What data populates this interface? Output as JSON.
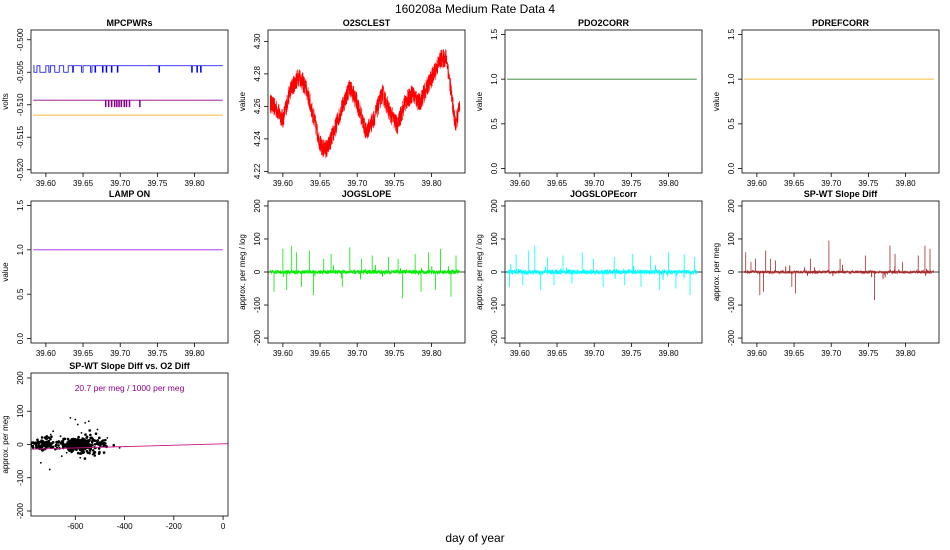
{
  "page": {
    "title": "160208a   Medium Rate Data 4",
    "xlabel": "day of year"
  },
  "chart_data": [
    {
      "id": "mpcpwrs",
      "type": "line",
      "title": "MPCPWRs",
      "ylabel": "volts",
      "xlabel": "",
      "xlim": [
        39.58,
        39.845
      ],
      "ylim": [
        -0.5205,
        -0.4985
      ],
      "xticks": [
        39.6,
        39.65,
        39.7,
        39.75,
        39.8
      ],
      "yticks": [
        -0.52,
        -0.515,
        -0.51,
        -0.505,
        -0.5
      ],
      "series": [
        {
          "color": "#0000ff",
          "kind": "step",
          "base": -0.504,
          "alt": -0.505,
          "dips": [
            [
              39.584,
              39.588
            ],
            [
              39.592,
              39.6
            ],
            [
              39.604,
              39.606
            ],
            [
              39.612,
              39.618
            ],
            [
              39.624,
              39.63
            ],
            [
              39.636,
              39.637
            ],
            [
              39.648,
              39.65
            ],
            [
              39.66,
              39.662
            ],
            [
              39.666,
              39.667
            ],
            [
              39.676,
              39.677
            ],
            [
              39.681,
              39.682
            ],
            [
              39.688,
              39.689
            ],
            [
              39.696,
              39.697
            ],
            [
              39.752,
              39.753
            ],
            [
              39.796,
              39.797
            ],
            [
              39.803,
              39.804
            ],
            [
              39.808,
              39.809
            ]
          ]
        },
        {
          "color": "#8b008b",
          "kind": "step",
          "base": -0.5093,
          "alt": -0.5103,
          "dips": [
            [
              39.68,
              39.681
            ],
            [
              39.684,
              39.685
            ],
            [
              39.688,
              39.689
            ],
            [
              39.692,
              39.693
            ],
            [
              39.695,
              39.696
            ],
            [
              39.698,
              39.699
            ],
            [
              39.701,
              39.702
            ],
            [
              39.705,
              39.706
            ],
            [
              39.708,
              39.709
            ],
            [
              39.712,
              39.713
            ],
            [
              39.726,
              39.727
            ]
          ]
        },
        {
          "color": "#ffa500",
          "kind": "flat",
          "value": -0.5116
        }
      ]
    },
    {
      "id": "o2sclest",
      "type": "line",
      "title": "O2SCLEST",
      "ylabel": "value",
      "xlabel": "",
      "xlim": [
        39.58,
        39.845
      ],
      "ylim": [
        4.219,
        4.307
      ],
      "xticks": [
        39.6,
        39.65,
        39.7,
        39.75,
        39.8
      ],
      "yticks": [
        4.22,
        4.24,
        4.26,
        4.28,
        4.3
      ],
      "series": [
        {
          "color": "#ff0000",
          "kind": "noisy",
          "noise": 0.012,
          "trend": [
            [
              39.583,
              4.262
            ],
            [
              39.592,
              4.258
            ],
            [
              39.6,
              4.252
            ],
            [
              39.61,
              4.27
            ],
            [
              39.622,
              4.279
            ],
            [
              39.632,
              4.27
            ],
            [
              39.642,
              4.252
            ],
            [
              39.652,
              4.234
            ],
            [
              39.66,
              4.234
            ],
            [
              39.67,
              4.246
            ],
            [
              39.68,
              4.26
            ],
            [
              39.69,
              4.272
            ],
            [
              39.7,
              4.262
            ],
            [
              39.712,
              4.244
            ],
            [
              39.722,
              4.252
            ],
            [
              39.734,
              4.268
            ],
            [
              39.744,
              4.256
            ],
            [
              39.754,
              4.248
            ],
            [
              39.764,
              4.262
            ],
            [
              39.774,
              4.268
            ],
            [
              39.784,
              4.262
            ],
            [
              39.794,
              4.272
            ],
            [
              39.804,
              4.281
            ],
            [
              39.812,
              4.289
            ],
            [
              39.82,
              4.29
            ],
            [
              39.826,
              4.27
            ],
            [
              39.832,
              4.248
            ],
            [
              39.838,
              4.26
            ]
          ]
        }
      ]
    },
    {
      "id": "pdo2corr",
      "type": "line",
      "title": "PDO2CORR",
      "ylabel": "value",
      "xlabel": "",
      "xlim": [
        39.58,
        39.845
      ],
      "ylim": [
        -0.05,
        1.55
      ],
      "xticks": [
        39.6,
        39.65,
        39.7,
        39.75,
        39.8
      ],
      "yticks": [
        0,
        0.5,
        1,
        1.5
      ],
      "yticklabels": [
        "0.0",
        "0.5",
        "1.0",
        "1.5"
      ],
      "series": [
        {
          "color": "#006400",
          "kind": "flat",
          "value": 1.0
        }
      ]
    },
    {
      "id": "pdrefcorr",
      "type": "line",
      "title": "PDREFCORR",
      "ylabel": "value",
      "xlabel": "",
      "xlim": [
        39.58,
        39.845
      ],
      "ylim": [
        -0.05,
        1.55
      ],
      "xticks": [
        39.6,
        39.65,
        39.7,
        39.75,
        39.8
      ],
      "yticks": [
        0,
        0.5,
        1,
        1.5
      ],
      "yticklabels": [
        "0.0",
        "0.5",
        "1.0",
        "1.5"
      ],
      "series": [
        {
          "color": "#ffa500",
          "kind": "flat",
          "value": 1.0
        }
      ]
    },
    {
      "id": "lampon",
      "type": "line",
      "title": "LAMP ON",
      "ylabel": "value",
      "xlabel": "",
      "xlim": [
        39.58,
        39.845
      ],
      "ylim": [
        -0.05,
        1.55
      ],
      "xticks": [
        39.6,
        39.65,
        39.7,
        39.75,
        39.8
      ],
      "yticks": [
        0,
        0.5,
        1,
        1.5
      ],
      "yticklabels": [
        "0.0",
        "0.5",
        "1.0",
        "1.5"
      ],
      "series": [
        {
          "color": "#a020f0",
          "kind": "flat",
          "value": 1.0
        }
      ]
    },
    {
      "id": "jogslope",
      "type": "line",
      "title": "JOGSLOPE",
      "ylabel": "approx. per meg / log",
      "xlabel": "",
      "xlim": [
        39.58,
        39.845
      ],
      "ylim": [
        -215,
        215
      ],
      "xticks": [
        39.6,
        39.65,
        39.7,
        39.75,
        39.8
      ],
      "yticks": [
        -200,
        -100,
        0,
        100,
        200
      ],
      "zeroline": true,
      "series": [
        {
          "color": "#00ee00",
          "kind": "spiky",
          "noise": 6,
          "spikes": [
            [
              39.588,
              -60
            ],
            [
              39.6,
              70
            ],
            [
              39.605,
              -55
            ],
            [
              39.612,
              80
            ],
            [
              39.618,
              60
            ],
            [
              39.625,
              -45
            ],
            [
              39.636,
              65
            ],
            [
              39.641,
              -70
            ],
            [
              39.655,
              40
            ],
            [
              39.665,
              55
            ],
            [
              39.68,
              -45
            ],
            [
              39.69,
              75
            ],
            [
              39.706,
              40
            ],
            [
              39.72,
              50
            ],
            [
              39.742,
              45
            ],
            [
              39.755,
              40
            ],
            [
              39.761,
              -80
            ],
            [
              39.778,
              55
            ],
            [
              39.786,
              -60
            ],
            [
              39.796,
              60
            ],
            [
              39.805,
              -55
            ],
            [
              39.812,
              70
            ],
            [
              39.826,
              -75
            ],
            [
              39.833,
              50
            ]
          ]
        }
      ]
    },
    {
      "id": "jogslopecorr",
      "type": "line",
      "title": "JOGSLOPEcorr",
      "ylabel": "approx. per meg / log",
      "xlabel": "",
      "xlim": [
        39.58,
        39.845
      ],
      "ylim": [
        -215,
        215
      ],
      "xticks": [
        39.6,
        39.65,
        39.7,
        39.75,
        39.8
      ],
      "yticks": [
        -200,
        -100,
        0,
        100,
        200
      ],
      "zeroline": true,
      "series": [
        {
          "color": "#00ffff",
          "kind": "spiky",
          "noise": 7,
          "spikes": [
            [
              39.586,
              -45
            ],
            [
              39.595,
              55
            ],
            [
              39.604,
              -40
            ],
            [
              39.612,
              65
            ],
            [
              39.62,
              80
            ],
            [
              39.628,
              -55
            ],
            [
              39.637,
              45
            ],
            [
              39.646,
              -40
            ],
            [
              39.658,
              50
            ],
            [
              39.67,
              -35
            ],
            [
              39.684,
              60
            ],
            [
              39.699,
              40
            ],
            [
              39.712,
              -45
            ],
            [
              39.727,
              45
            ],
            [
              39.741,
              -40
            ],
            [
              39.752,
              55
            ],
            [
              39.763,
              -45
            ],
            [
              39.776,
              50
            ],
            [
              39.788,
              -55
            ],
            [
              39.8,
              60
            ],
            [
              39.81,
              -50
            ],
            [
              39.821,
              55
            ],
            [
              39.829,
              -70
            ],
            [
              39.835,
              45
            ]
          ]
        }
      ]
    },
    {
      "id": "spwtslopediff",
      "type": "line",
      "title": "SP-WT Slope Diff",
      "ylabel": "approx. per meg",
      "xlabel": "",
      "xlim": [
        39.58,
        39.845
      ],
      "ylim": [
        -215,
        215
      ],
      "xticks": [
        39.6,
        39.65,
        39.7,
        39.75,
        39.8
      ],
      "yticks": [
        -200,
        -100,
        0,
        100,
        200
      ],
      "zeroline": true,
      "series": [
        {
          "color": "#a52a2a",
          "kind": "spiky",
          "noise": 4,
          "spikes": [
            [
              39.585,
              60
            ],
            [
              39.592,
              30
            ],
            [
              39.598,
              40
            ],
            [
              39.604,
              -70
            ],
            [
              39.609,
              -60
            ],
            [
              39.612,
              65
            ],
            [
              39.618,
              40
            ],
            [
              39.625,
              35
            ],
            [
              39.647,
              -45
            ],
            [
              39.652,
              -65
            ],
            [
              39.672,
              40
            ],
            [
              39.697,
              95
            ],
            [
              39.712,
              40
            ],
            [
              39.746,
              50
            ],
            [
              39.758,
              -85
            ],
            [
              39.779,
              80
            ],
            [
              39.786,
              55
            ],
            [
              39.796,
              30
            ],
            [
              39.817,
              50
            ],
            [
              39.826,
              80
            ],
            [
              39.833,
              70
            ]
          ]
        }
      ]
    },
    {
      "id": "spwtvso2",
      "type": "scatter",
      "title": "SP-WT Slope Diff vs. O2 Diff",
      "ylabel": "approx. per meg",
      "xlabel": "",
      "annotation": "20.7 per meg / 1000 per meg",
      "annotation_color": "#8b008b",
      "xlim": [
        -780,
        20
      ],
      "ylim": [
        -215,
        215
      ],
      "xticks": [
        -600,
        -400,
        -200,
        0
      ],
      "yticks": [
        -200,
        -100,
        0,
        100,
        200
      ],
      "fit": {
        "slope": 0.0207,
        "intercept": 2.0,
        "color": "#c71585"
      },
      "clusters": [
        {
          "center": -765,
          "spread": 8,
          "count": 22,
          "ysd": 6
        },
        {
          "center": -720,
          "spread": 20,
          "count": 70,
          "ysd": 12
        },
        {
          "center": -600,
          "spread": 28,
          "count": 220,
          "ysd": 8
        },
        {
          "center": -560,
          "spread": 35,
          "count": 120,
          "ysd": 18
        },
        {
          "center": -490,
          "spread": 20,
          "count": 18,
          "ysd": 10
        }
      ],
      "outliers": [
        [
          -740,
          -55
        ],
        [
          -704,
          -75
        ],
        [
          -690,
          40
        ],
        [
          -655,
          -35
        ],
        [
          -620,
          80
        ],
        [
          -600,
          75
        ],
        [
          -590,
          60
        ],
        [
          -580,
          -40
        ],
        [
          -560,
          65
        ],
        [
          -545,
          70
        ],
        [
          -530,
          -30
        ],
        [
          -510,
          45
        ],
        [
          -470,
          20
        ],
        [
          -420,
          -10
        ],
        [
          -660,
          25
        ],
        [
          -700,
          30
        ],
        [
          -635,
          -25
        ],
        [
          -575,
          35
        ]
      ]
    }
  ]
}
